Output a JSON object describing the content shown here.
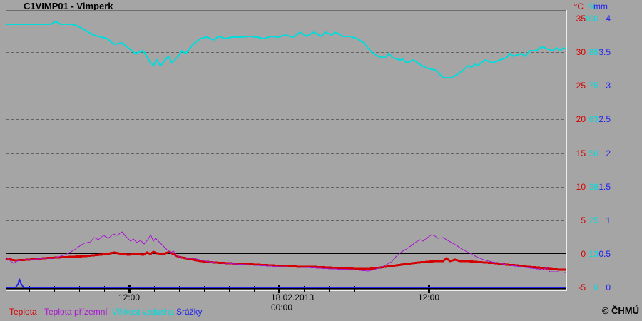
{
  "title": "C1VIMP01 - Vimperk",
  "copyright": "© ČHMÚ",
  "colors": {
    "background": "#a5a5a5",
    "temperature": "#d40000",
    "ground_temperature": "#aa16d2",
    "humidity": "#00dcdc",
    "precipitation": "#2222ee",
    "grid": "#646464",
    "axis": "#000000",
    "text": "#000000"
  },
  "y_axis": {
    "columns": [
      {
        "id": "temperature",
        "unit": "°C"
      },
      {
        "id": "humidity",
        "unit": "%"
      },
      {
        "id": "precipitation",
        "unit": "mm"
      }
    ],
    "rows": [
      {
        "temperature": "35",
        "humidity": "100",
        "precipitation": "4"
      },
      {
        "temperature": "30",
        "humidity": "88",
        "precipitation": "3.5"
      },
      {
        "temperature": "25",
        "humidity": "75",
        "precipitation": "3"
      },
      {
        "temperature": "20",
        "humidity": "63",
        "precipitation": "2.5"
      },
      {
        "temperature": "15",
        "humidity": "50",
        "precipitation": "2"
      },
      {
        "temperature": "10",
        "humidity": "38",
        "precipitation": "1.5"
      },
      {
        "temperature": "5",
        "humidity": "25",
        "precipitation": "1"
      },
      {
        "temperature": "0",
        "humidity": "13",
        "precipitation": "0.5"
      },
      {
        "temperature": "-5",
        "humidity": "0",
        "precipitation": "0"
      }
    ]
  },
  "x_axis": {
    "labels": [
      {
        "t": -12,
        "lines": [
          "12:00"
        ]
      },
      {
        "t": 0,
        "lines": [
          "18.02.2013",
          "00:00"
        ]
      },
      {
        "t": 12,
        "lines": [
          "12:00"
        ]
      }
    ],
    "tick_start_h": -20,
    "tick_step_h": 2,
    "tick_end_h": 22,
    "major_ticks_h": [
      -12,
      0,
      12
    ]
  },
  "legend": [
    {
      "label": "Teplota",
      "color_id": "temperature"
    },
    {
      "label": "Teplota přízemní",
      "color_id": "ground_temperature"
    },
    {
      "label": "Vlhkost vzduchu",
      "color_id": "humidity"
    },
    {
      "label": "Srážky",
      "color_id": "precipitation"
    }
  ],
  "chart_data": {
    "type": "line",
    "title": "C1VIMP01 - Vimperk",
    "x_unit": "hours relative to 18.02.2013 00:00",
    "x_range": [
      -21.9,
      23
    ],
    "grid": "horizontal-dashed",
    "legend_position": "bottom",
    "axes": {
      "temperature": {
        "unit": "°C",
        "min": -5,
        "max": 35,
        "zero_line": true
      },
      "humidity": {
        "unit": "%",
        "min": 0,
        "max": 100
      },
      "precipitation": {
        "unit": "mm",
        "min": 0,
        "max": 4
      }
    },
    "series": [
      {
        "name": "Teplota",
        "axis": "temperature",
        "color_id": "temperature",
        "width": 3,
        "points": [
          [
            -21.9,
            -0.7
          ],
          [
            -21.2,
            -1
          ],
          [
            -20.1,
            -0.9
          ],
          [
            -18.9,
            -0.7
          ],
          [
            -17.8,
            -0.5
          ],
          [
            -16.6,
            -0.4
          ],
          [
            -15.5,
            -0.3
          ],
          [
            -14.3,
            -0.1
          ],
          [
            -13.8,
            0
          ],
          [
            -13.2,
            0.2
          ],
          [
            -12.6,
            0
          ],
          [
            -12.1,
            -0.1
          ],
          [
            -11.5,
            0
          ],
          [
            -10.9,
            -0.1
          ],
          [
            -10.6,
            0.2
          ],
          [
            -10.3,
            0
          ],
          [
            -10.1,
            0.3
          ],
          [
            -9.8,
            0.1
          ],
          [
            -9.2,
            0
          ],
          [
            -8.8,
            0.3
          ],
          [
            -8.5,
            0
          ],
          [
            -8.1,
            -0.4
          ],
          [
            -7.5,
            -0.6
          ],
          [
            -6.9,
            -0.9
          ],
          [
            -6.3,
            -1.1
          ],
          [
            -5.2,
            -1.3
          ],
          [
            -4.1,
            -1.4
          ],
          [
            -2.9,
            -1.5
          ],
          [
            -1.8,
            -1.6
          ],
          [
            -0.6,
            -1.7
          ],
          [
            0.5,
            -1.8
          ],
          [
            1.7,
            -1.9
          ],
          [
            2.8,
            -1.9
          ],
          [
            3.9,
            -2
          ],
          [
            5.1,
            -2.1
          ],
          [
            6.2,
            -2.2
          ],
          [
            7.1,
            -2.2
          ],
          [
            7.7,
            -2.1
          ],
          [
            8.5,
            -1.9
          ],
          [
            9.4,
            -1.7
          ],
          [
            10.2,
            -1.5
          ],
          [
            11.1,
            -1.3
          ],
          [
            11.9,
            -1.2
          ],
          [
            12.5,
            -1.1
          ],
          [
            13.1,
            -1.1
          ],
          [
            13.4,
            -0.7
          ],
          [
            13.7,
            -1.1
          ],
          [
            14.1,
            -0.9
          ],
          [
            14.5,
            -1.1
          ],
          [
            15.1,
            -1.1
          ],
          [
            15.7,
            -1.2
          ],
          [
            16.5,
            -1.3
          ],
          [
            17.4,
            -1.4
          ],
          [
            18.2,
            -1.6
          ],
          [
            19.1,
            -1.7
          ],
          [
            19.9,
            -1.9
          ],
          [
            20.8,
            -2
          ],
          [
            21.7,
            -2.2
          ],
          [
            22.5,
            -2.3
          ],
          [
            23,
            -2.4
          ]
        ]
      },
      {
        "name": "Teplota přízemní",
        "axis": "temperature",
        "color_id": "ground_temperature",
        "width": 1,
        "points": [
          [
            -21.9,
            -0.4
          ],
          [
            -21.5,
            -1.1
          ],
          [
            -21.3,
            -1.4
          ],
          [
            -21,
            -1.1
          ],
          [
            -20.5,
            -0.9
          ],
          [
            -19.8,
            -0.9
          ],
          [
            -18.9,
            -0.7
          ],
          [
            -18.1,
            -0.6
          ],
          [
            -17.3,
            -0.2
          ],
          [
            -16.9,
            0.1
          ],
          [
            -16.5,
            0.5
          ],
          [
            -16.1,
            1
          ],
          [
            -15.6,
            1.6
          ],
          [
            -15.1,
            1.8
          ],
          [
            -14.8,
            2.4
          ],
          [
            -14.5,
            2.1
          ],
          [
            -14.1,
            2.7
          ],
          [
            -13.7,
            2.3
          ],
          [
            -13.3,
            3
          ],
          [
            -13,
            2.7
          ],
          [
            -12.6,
            3.3
          ],
          [
            -12.3,
            2.6
          ],
          [
            -11.9,
            1.9
          ],
          [
            -11.7,
            2.2
          ],
          [
            -11.4,
            1.7
          ],
          [
            -11.1,
            2
          ],
          [
            -10.8,
            1.5
          ],
          [
            -10.5,
            2.2
          ],
          [
            -10.3,
            2.8
          ],
          [
            -10.1,
            1.9
          ],
          [
            -9.9,
            2.3
          ],
          [
            -9.6,
            1.8
          ],
          [
            -9.3,
            1.2
          ],
          [
            -9,
            0.6
          ],
          [
            -8.7,
            0.2
          ],
          [
            -8.5,
            0.4
          ],
          [
            -8.2,
            -0.2
          ],
          [
            -7.9,
            -0.5
          ],
          [
            -7.4,
            -0.7
          ],
          [
            -6.8,
            -0.6
          ],
          [
            -6.2,
            -1
          ],
          [
            -5.2,
            -1.3
          ],
          [
            -3.5,
            -1.5
          ],
          [
            -1.8,
            -1.7
          ],
          [
            0.2,
            -1.9
          ],
          [
            2.2,
            -2
          ],
          [
            4.2,
            -2.2
          ],
          [
            5.9,
            -2.3
          ],
          [
            7.1,
            -2.6
          ],
          [
            7.8,
            -2.2
          ],
          [
            8.4,
            -1.8
          ],
          [
            9,
            -1.2
          ],
          [
            9.4,
            -0.3
          ],
          [
            9.8,
            0.3
          ],
          [
            10.2,
            0.7
          ],
          [
            10.6,
            1.3
          ],
          [
            10.9,
            1.7
          ],
          [
            11.3,
            2.1
          ],
          [
            11.5,
            1.9
          ],
          [
            11.8,
            2.3
          ],
          [
            12.2,
            2.8
          ],
          [
            12.5,
            2.6
          ],
          [
            12.7,
            2.3
          ],
          [
            13.1,
            2.4
          ],
          [
            13.4,
            2.1
          ],
          [
            13.8,
            1.7
          ],
          [
            14.2,
            1.3
          ],
          [
            14.7,
            0.6
          ],
          [
            15.3,
            0.1
          ],
          [
            15.8,
            -0.4
          ],
          [
            16.4,
            -0.9
          ],
          [
            17,
            -1.2
          ],
          [
            17.7,
            -1.4
          ],
          [
            18.5,
            -1.7
          ],
          [
            19.4,
            -1.9
          ],
          [
            20.2,
            -2.1
          ],
          [
            21.1,
            -2.4
          ],
          [
            21.4,
            -2
          ],
          [
            21.7,
            -2.7
          ],
          [
            22.2,
            -2.7
          ],
          [
            23,
            -2.8
          ]
        ]
      },
      {
        "name": "Vlhkost vzduchu",
        "axis": "humidity",
        "color_id": "humidity",
        "width": 2,
        "points": [
          [
            -21.9,
            98
          ],
          [
            -18.3,
            98
          ],
          [
            -17.9,
            99
          ],
          [
            -17.5,
            98
          ],
          [
            -16.6,
            98
          ],
          [
            -16.1,
            97
          ],
          [
            -14.9,
            94
          ],
          [
            -13.8,
            92.5
          ],
          [
            -13.2,
            90.5
          ],
          [
            -12.6,
            91
          ],
          [
            -12.1,
            89
          ],
          [
            -11.5,
            87
          ],
          [
            -10.9,
            88
          ],
          [
            -10.3,
            83.5
          ],
          [
            -10.1,
            82.5
          ],
          [
            -9.8,
            84.5
          ],
          [
            -9.5,
            82.5
          ],
          [
            -8.9,
            86
          ],
          [
            -8.6,
            83.5
          ],
          [
            -8.1,
            86
          ],
          [
            -7.8,
            88
          ],
          [
            -7.5,
            87
          ],
          [
            -6.9,
            90.5
          ],
          [
            -6.3,
            92.5
          ],
          [
            -5.8,
            93
          ],
          [
            -5.2,
            92
          ],
          [
            -4.9,
            93.5
          ],
          [
            -4.3,
            92.5
          ],
          [
            -3.8,
            93
          ],
          [
            -3.2,
            93
          ],
          [
            -2.3,
            93.5
          ],
          [
            -1.8,
            93
          ],
          [
            -1.2,
            92.5
          ],
          [
            -0.6,
            93.5
          ],
          [
            -0.1,
            93
          ],
          [
            0.5,
            94
          ],
          [
            1.1,
            93
          ],
          [
            1.7,
            95
          ],
          [
            2.2,
            93.5
          ],
          [
            2.8,
            95
          ],
          [
            3.4,
            93.5
          ],
          [
            3.7,
            95
          ],
          [
            4.2,
            94
          ],
          [
            4.5,
            95
          ],
          [
            5.1,
            93.5
          ],
          [
            5.7,
            93.5
          ],
          [
            6.2,
            92.5
          ],
          [
            6.8,
            91
          ],
          [
            7.4,
            87.5
          ],
          [
            7.9,
            86
          ],
          [
            8.5,
            85.5
          ],
          [
            8.8,
            87
          ],
          [
            9.1,
            85.5
          ],
          [
            9.7,
            84.5
          ],
          [
            9.9,
            85
          ],
          [
            10.2,
            83.5
          ],
          [
            10.8,
            84.5
          ],
          [
            11.4,
            82.5
          ],
          [
            11.9,
            81.5
          ],
          [
            12.5,
            81
          ],
          [
            12.8,
            79.5
          ],
          [
            13.2,
            78
          ],
          [
            13.8,
            78
          ],
          [
            14.2,
            79
          ],
          [
            14.8,
            81
          ],
          [
            15.1,
            82.5
          ],
          [
            15.4,
            82
          ],
          [
            15.7,
            83
          ],
          [
            15.9,
            82.5
          ],
          [
            16.5,
            84.5
          ],
          [
            17.1,
            83.5
          ],
          [
            17.7,
            84.5
          ],
          [
            18.2,
            85.5
          ],
          [
            18.5,
            87
          ],
          [
            18.8,
            86
          ],
          [
            19.4,
            87
          ],
          [
            19.7,
            86
          ],
          [
            20.1,
            88
          ],
          [
            20.6,
            88
          ],
          [
            20.9,
            89
          ],
          [
            21.2,
            89.5
          ],
          [
            21.5,
            88.5
          ],
          [
            21.9,
            88
          ],
          [
            22.2,
            89
          ],
          [
            22.5,
            88
          ],
          [
            22.8,
            89
          ],
          [
            23,
            88.5
          ]
        ]
      },
      {
        "name": "Srážky",
        "axis": "precipitation",
        "color_id": "precipitation",
        "width": 2,
        "points": [
          [
            -21.9,
            0
          ],
          [
            -21.1,
            0
          ],
          [
            -20.9,
            0.06
          ],
          [
            -20.8,
            0.13
          ],
          [
            -20.7,
            0.06
          ],
          [
            -20.5,
            0
          ],
          [
            23,
            0
          ]
        ]
      }
    ]
  }
}
